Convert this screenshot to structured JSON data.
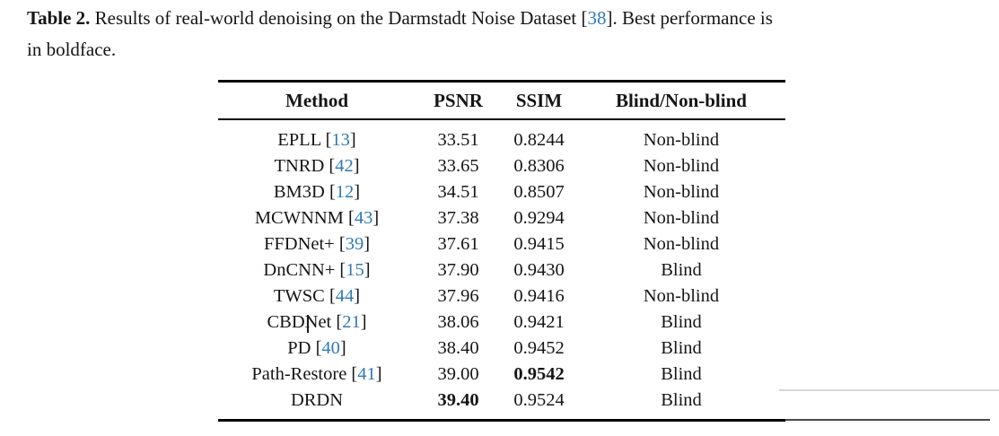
{
  "page": {
    "background_color": "#ffffff",
    "text_color": "#151515",
    "citation_color": "#2f7ab5"
  },
  "caption": {
    "label": "Table 2.",
    "body_before_ref": "Results of real-world denoising on the Darmstadt Noise Dataset [",
    "ref": "38",
    "body_after_ref": "]. Best performance is",
    "line2": "in boldface."
  },
  "table": {
    "headers": [
      "Method",
      "PSNR",
      "SSIM",
      "Blind/Non-blind"
    ],
    "rows": [
      {
        "method_pre": "EPLL [",
        "ref": "13",
        "method_post": "]",
        "psnr": "33.51",
        "ssim": "0.8244",
        "blind": "Non-blind",
        "bold": null
      },
      {
        "method_pre": "TNRD [",
        "ref": "42",
        "method_post": "]",
        "psnr": "33.65",
        "ssim": "0.8306",
        "blind": "Non-blind",
        "bold": null
      },
      {
        "method_pre": "BM3D [",
        "ref": "12",
        "method_post": "]",
        "psnr": "34.51",
        "ssim": "0.8507",
        "blind": "Non-blind",
        "bold": null
      },
      {
        "method_pre": "MCWNNM [",
        "ref": "43",
        "method_post": "]",
        "psnr": "37.38",
        "ssim": "0.9294",
        "blind": "Non-blind",
        "bold": null
      },
      {
        "method_pre": "FFDNet+ [",
        "ref": "39",
        "method_post": "]",
        "psnr": "37.61",
        "ssim": "0.9415",
        "blind": "Non-blind",
        "bold": null
      },
      {
        "method_pre": "DnCNN+ [",
        "ref": "15",
        "method_post": "]",
        "psnr": "37.90",
        "ssim": "0.9430",
        "blind": "Blind",
        "bold": null
      },
      {
        "method_pre": "TWSC [",
        "ref": "44",
        "method_post": "]",
        "psnr": "37.96",
        "ssim": "0.9416",
        "blind": "Non-blind",
        "bold": null
      },
      {
        "method_pre": "CBDNet [",
        "ref": "21",
        "method_post": "]",
        "psnr": "38.06",
        "ssim": "0.9421",
        "blind": "Blind",
        "bold": null
      },
      {
        "method_pre": "PD [",
        "ref": "40",
        "method_post": "]",
        "psnr": "38.40",
        "ssim": "0.9452",
        "blind": "Blind",
        "bold": null
      },
      {
        "method_pre": "Path-Restore [",
        "ref": "41",
        "method_post": "]",
        "psnr": "39.00",
        "ssim": "0.9542",
        "blind": "Blind",
        "bold": "ssim"
      },
      {
        "method_pre": "DRDN",
        "ref": "",
        "method_post": "",
        "psnr": "39.40",
        "ssim": "0.9524",
        "blind": "Blind",
        "bold": "psnr"
      }
    ]
  }
}
